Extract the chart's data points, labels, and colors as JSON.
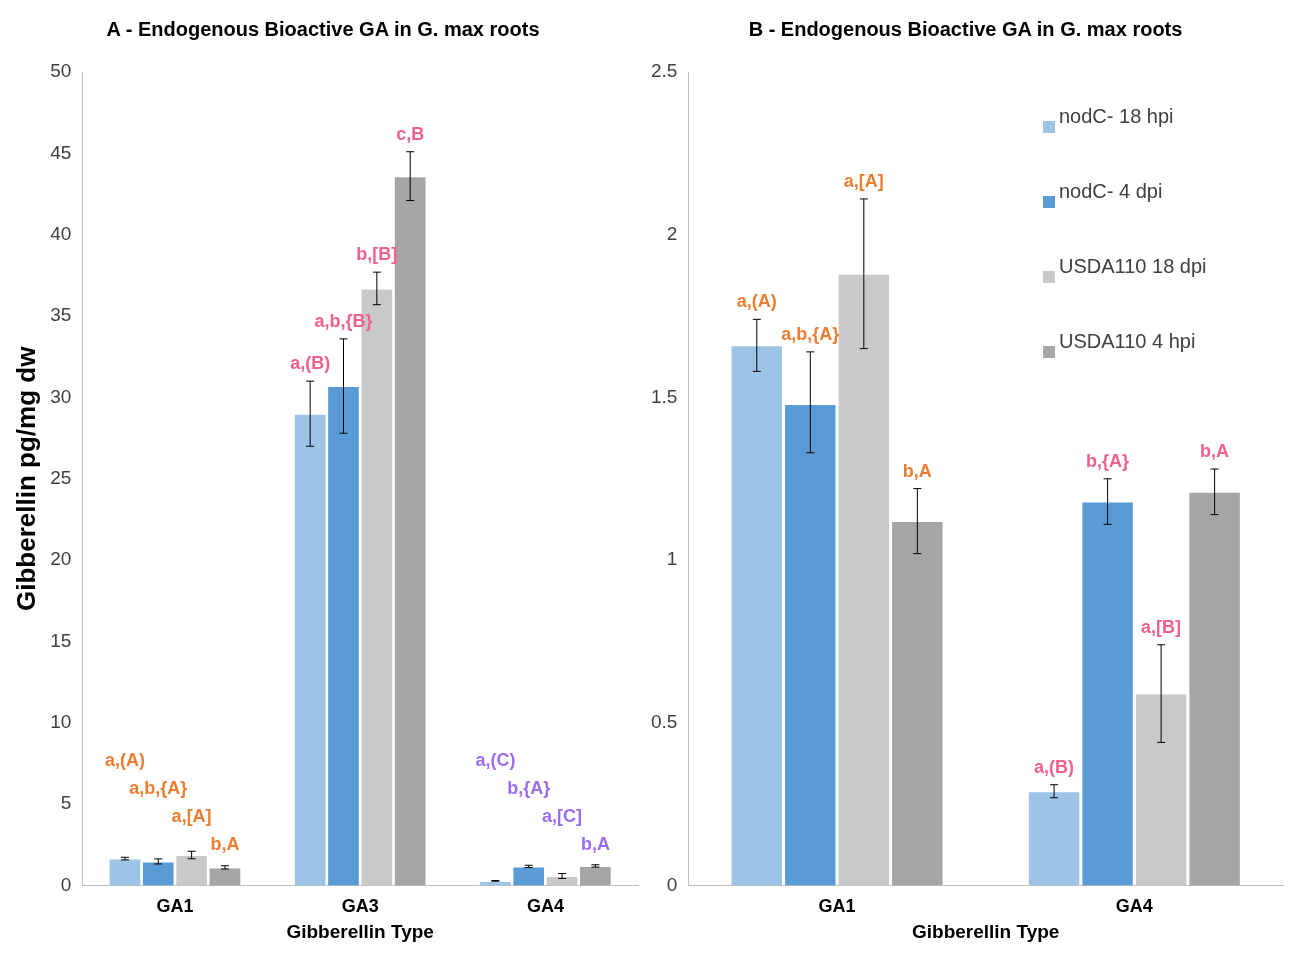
{
  "chart_data": [
    {
      "type": "bar",
      "title": "A - Endogenous Bioactive GA in G. max roots",
      "xlabel": "Gibberellin Type",
      "ylabel": "Gibberellin pg/mg dw",
      "categories": [
        "GA1",
        "GA3",
        "GA4"
      ],
      "series": [
        {
          "color": "#9dc3e6",
          "values": [
            1.66,
            29.0,
            0.29
          ],
          "errors": [
            0.08,
            2.0,
            0.02
          ]
        },
        {
          "color": "#5b9bd5",
          "values": [
            1.48,
            30.7,
            1.18
          ],
          "errors": [
            [
              1.33,
              1.64
            ],
            2.9,
            0.07
          ]
        },
        {
          "color": "#c9c9c9",
          "values": [
            1.88,
            36.7,
            0.59
          ],
          "errors": [
            0.23,
            1.0,
            0.15
          ]
        },
        {
          "color": "#a5a5a5",
          "values": [
            1.12,
            43.6,
            1.21
          ],
          "errors": [
            0.1,
            1.5,
            0.07
          ]
        }
      ],
      "ylim": [
        0,
        50
      ],
      "yticks": [
        0,
        5,
        10,
        15,
        20,
        25,
        30,
        35,
        40,
        45,
        50
      ],
      "grid": false,
      "legend": false,
      "annotations": [
        "a,(A)",
        "a,b,{A}",
        "a,[A]",
        "b,A",
        "a,(B)",
        "a,b,{B}",
        "b,[B]",
        "c,B",
        "a,(C)",
        "b,{A}",
        "a,[C]",
        "b,A"
      ]
    },
    {
      "type": "bar",
      "title": "B - Endogenous Bioactive GA in G. max roots",
      "xlabel": "Gibberellin Type",
      "categories": [
        "GA1",
        "GA4"
      ],
      "series": [
        {
          "name": "nodC- 18 hpi",
          "color": "#9dc3e6",
          "values": [
            1.66,
            0.29
          ],
          "errors": [
            0.08,
            0.02
          ]
        },
        {
          "name": "nodC- 4 dpi",
          "color": "#5b9bd5",
          "values": [
            1.48,
            1.18
          ],
          "errors": [
            [
              1.33,
              1.64
            ],
            0.07
          ]
        },
        {
          "name": "USDA110 18 dpi",
          "color": "#c9c9c9",
          "values": [
            1.88,
            0.59
          ],
          "errors": [
            0.23,
            0.15
          ]
        },
        {
          "name": "USDA110 4 hpi",
          "color": "#a5a5a5",
          "values": [
            1.12,
            1.21
          ],
          "errors": [
            0.1,
            0.07
          ]
        }
      ],
      "ylim": [
        0,
        2.5
      ],
      "yticks": [
        0,
        0.5,
        1,
        1.5,
        2,
        2.5
      ],
      "grid": false,
      "legend": "top right",
      "annotations": [
        "a,(A)",
        "a,b,{A}",
        "a,[A]",
        "b,A",
        "a,(B)",
        "b,{A}",
        "a,[B]",
        "b,A"
      ]
    }
  ]
}
